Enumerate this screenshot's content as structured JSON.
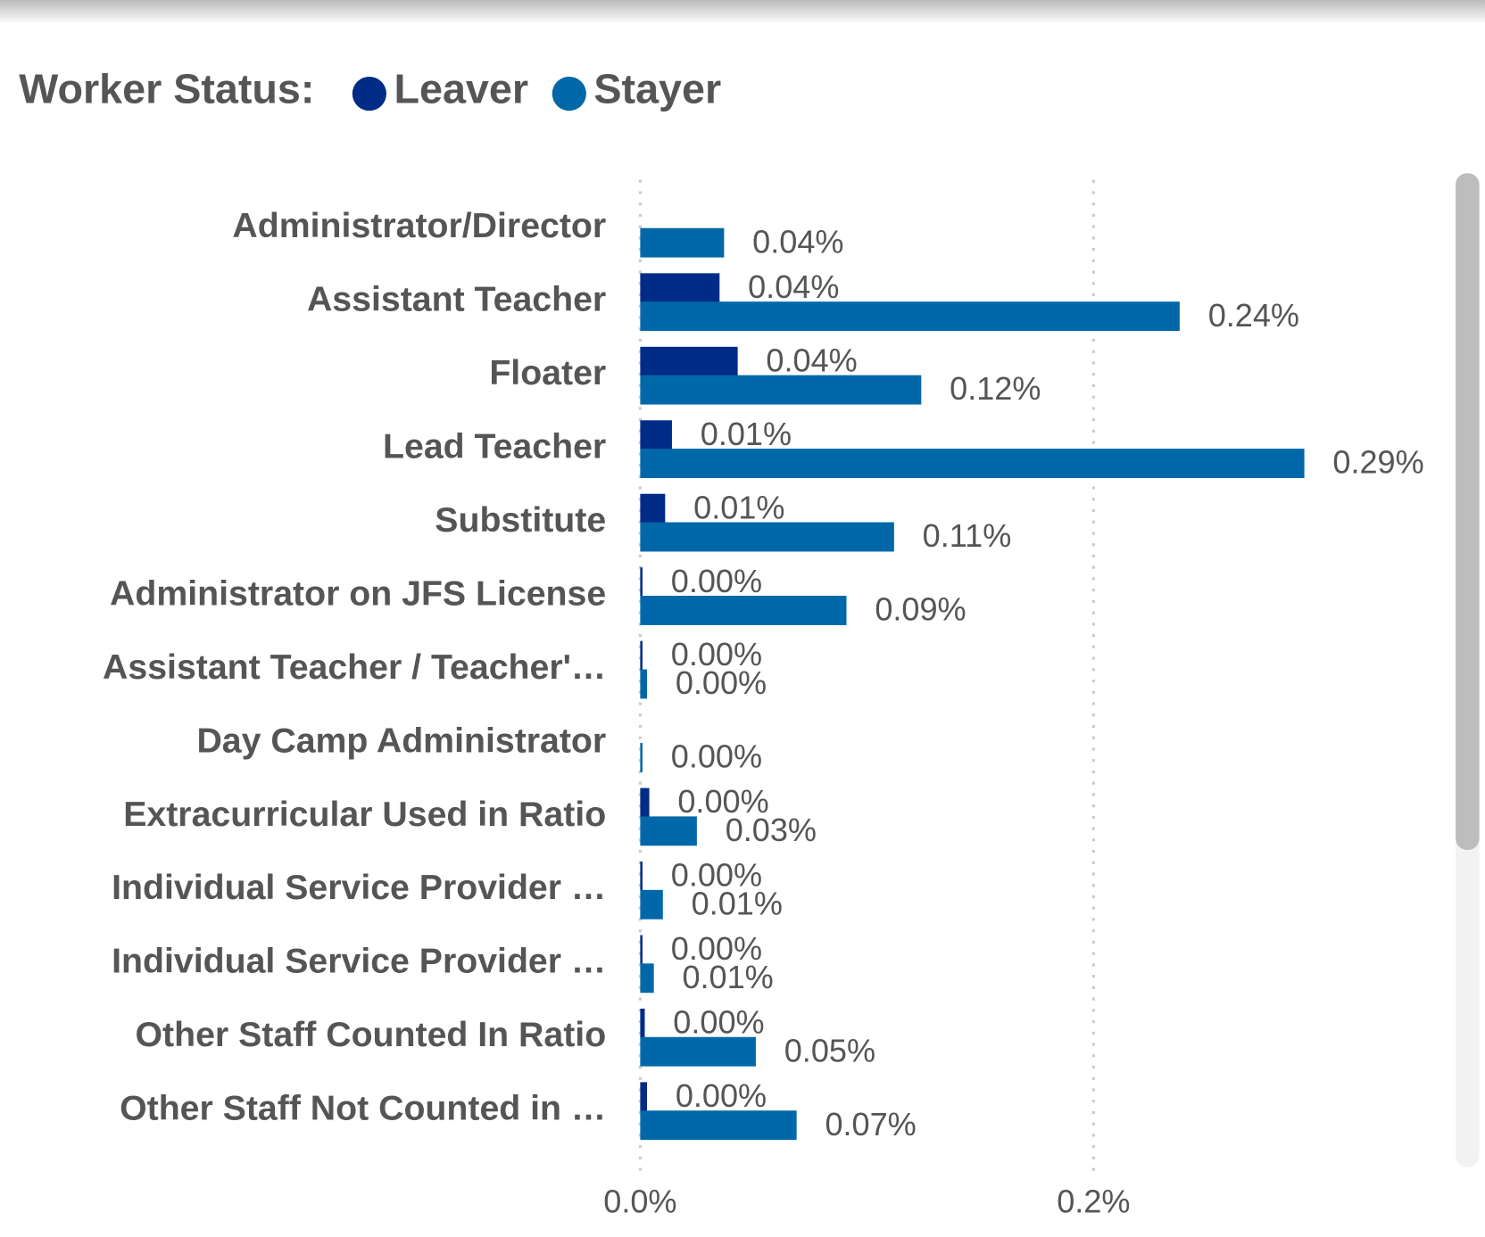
{
  "chart_data": {
    "type": "bar",
    "orientation": "horizontal",
    "legend_title": "Worker Status:",
    "categories": [
      "Administrator/Director",
      "Assistant Teacher",
      "Floater",
      "Lead Teacher",
      "Substitute",
      "Administrator on JFS License",
      "Assistant Teacher / Teacher'…",
      "Day Camp Administrator",
      "Extracurricular Used in Ratio",
      "Individual Service Provider …",
      "Individual Service Provider …",
      "Other Staff Counted In Ratio",
      "Other Staff Not Counted in …"
    ],
    "series": [
      {
        "name": "Leaver",
        "color": "#002b87",
        "values": [
          null,
          0.035,
          0.043,
          0.014,
          0.011,
          0.001,
          0.001,
          null,
          0.004,
          0.001,
          0.001,
          0.002,
          0.003
        ],
        "value_labels": [
          null,
          "0.04%",
          "0.04%",
          "0.01%",
          "0.01%",
          "0.00%",
          "0.00%",
          null,
          "0.00%",
          "0.00%",
          "0.00%",
          "0.00%",
          "0.00%"
        ]
      },
      {
        "name": "Stayer",
        "color": "#0068a8",
        "values": [
          0.037,
          0.238,
          0.124,
          0.293,
          0.112,
          0.091,
          0.003,
          0.001,
          0.025,
          0.01,
          0.006,
          0.051,
          0.069
        ],
        "value_labels": [
          "0.04%",
          "0.24%",
          "0.12%",
          "0.29%",
          "0.11%",
          "0.09%",
          "0.00%",
          "0.00%",
          "0.03%",
          "0.01%",
          "0.01%",
          "0.05%",
          "0.07%"
        ]
      }
    ],
    "xlim": [
      0,
      0.3
    ],
    "xticks": [
      {
        "value": 0,
        "label": "0.0%"
      },
      {
        "value": 0.2,
        "label": "0.2%"
      }
    ],
    "grid": true
  }
}
